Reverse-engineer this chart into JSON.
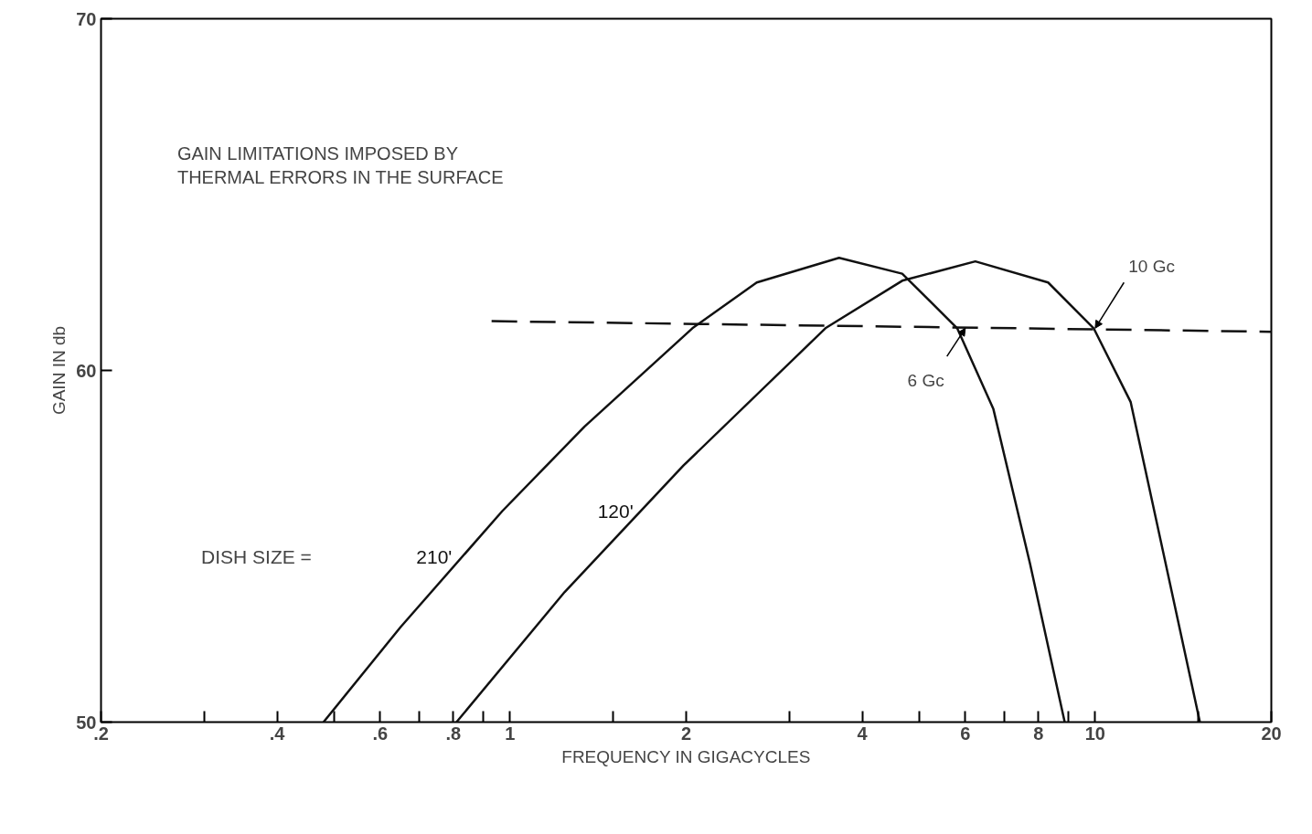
{
  "chart_data": {
    "type": "line",
    "xlabel": "FREQUENCY IN GIGACYCLES",
    "ylabel": "GAIN IN db",
    "log": "x",
    "xlim": [
      0.2,
      20
    ],
    "ylim": [
      50,
      70
    ],
    "xticks": [
      {
        "value": 0.2,
        "label": ".2"
      },
      {
        "value": 0.3,
        "label": null
      },
      {
        "value": 0.4,
        "label": ".4"
      },
      {
        "value": 0.5,
        "label": null
      },
      {
        "value": 0.6,
        "label": ".6"
      },
      {
        "value": 0.7,
        "label": null
      },
      {
        "value": 0.8,
        "label": ".8"
      },
      {
        "value": 0.9,
        "label": null
      },
      1,
      {
        "value": 1.5,
        "label": null
      },
      2,
      {
        "value": 3,
        "label": null
      },
      4,
      {
        "value": 5,
        "label": null
      },
      6,
      {
        "value": 7,
        "label": null
      },
      8,
      {
        "value": 9,
        "label": null
      },
      10,
      {
        "value": 15,
        "label": null
      },
      20
    ],
    "yticks": [
      50,
      60,
      70
    ],
    "grid": false,
    "marker": "none",
    "line_style": "solid",
    "series": [
      {
        "name": "210'",
        "color": "#111111",
        "x": [
          0.48,
          0.65,
          0.97,
          1.34,
          2.05,
          2.64,
          3.65,
          4.68,
          5.81,
          6.7,
          7.74,
          8.87
        ],
        "values": [
          50,
          52.7,
          56.0,
          58.4,
          61.2,
          62.5,
          63.2,
          62.75,
          61.2,
          58.9,
          54.5,
          50
        ]
      },
      {
        "name": "120'",
        "color": "#111111",
        "x": [
          0.81,
          1.24,
          1.98,
          3.46,
          4.68,
          6.24,
          8.31,
          9.94,
          11.5,
          13.2,
          15.1
        ],
        "values": [
          50,
          53.7,
          57.3,
          61.2,
          62.55,
          63.1,
          62.5,
          61.2,
          59.1,
          54.5,
          50
        ]
      },
      {
        "color": "#111111",
        "line_style": "dashed",
        "x": [
          0.93,
          20
        ],
        "values": [
          61.4,
          61.1
        ]
      }
    ],
    "annotations": [
      "GAIN LIMITATIONS IMPOSED BY\nTHERMAL ERRORS IN THE SURFACE",
      "DISH SIZE  =",
      {
        "text": "6 Gc",
        "x": 6,
        "y": 61.2
      },
      {
        "text": "10 Gc",
        "x": 10,
        "y": 61.2
      }
    ]
  }
}
